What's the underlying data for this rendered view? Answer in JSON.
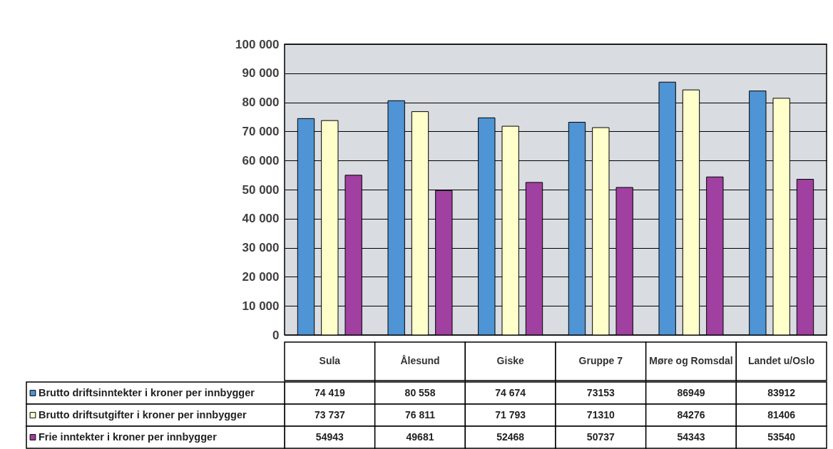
{
  "chart_data": {
    "type": "bar",
    "categories": [
      "Sula",
      "Ålesund",
      "Giske",
      "Gruppe 7",
      "Møre og Romsdal",
      "Landet u/Oslo"
    ],
    "series": [
      {
        "name": "Brutto driftsinntekter i kroner per innbygger",
        "color": "#4f94d4",
        "values": [
          74419,
          80558,
          74674,
          73153,
          86949,
          83912
        ],
        "value_labels": [
          "74 419",
          "80 558",
          "74 674",
          "73153",
          "86949",
          "83912"
        ]
      },
      {
        "name": "Brutto driftsutgifter i kroner per innbygger",
        "color": "#ffffcc",
        "values": [
          73737,
          76811,
          71793,
          71310,
          84276,
          81406
        ],
        "value_labels": [
          "73 737",
          "76 811",
          "71 793",
          "71310",
          "84276",
          "81406"
        ]
      },
      {
        "name": "Frie inntekter i kroner per innbygger",
        "color": "#a040a0",
        "values": [
          54943,
          49681,
          52468,
          50737,
          54343,
          53540
        ],
        "value_labels": [
          "54943",
          "49681",
          "52468",
          "50737",
          "54343",
          "53540"
        ]
      }
    ],
    "ylim": [
      0,
      100000
    ],
    "yticks": [
      {
        "value": 0,
        "label": "0"
      },
      {
        "value": 10000,
        "label": "10 000"
      },
      {
        "value": 20000,
        "label": "20 000"
      },
      {
        "value": 30000,
        "label": "30 000"
      },
      {
        "value": 40000,
        "label": "40 000"
      },
      {
        "value": 50000,
        "label": "50 000"
      },
      {
        "value": 60000,
        "label": "60 000"
      },
      {
        "value": 70000,
        "label": "70 000"
      },
      {
        "value": 80000,
        "label": "80 000"
      },
      {
        "value": 90000,
        "label": "90 000"
      },
      {
        "value": 100000,
        "label": "100 000"
      }
    ],
    "grid": "y",
    "legend": "bottom"
  }
}
